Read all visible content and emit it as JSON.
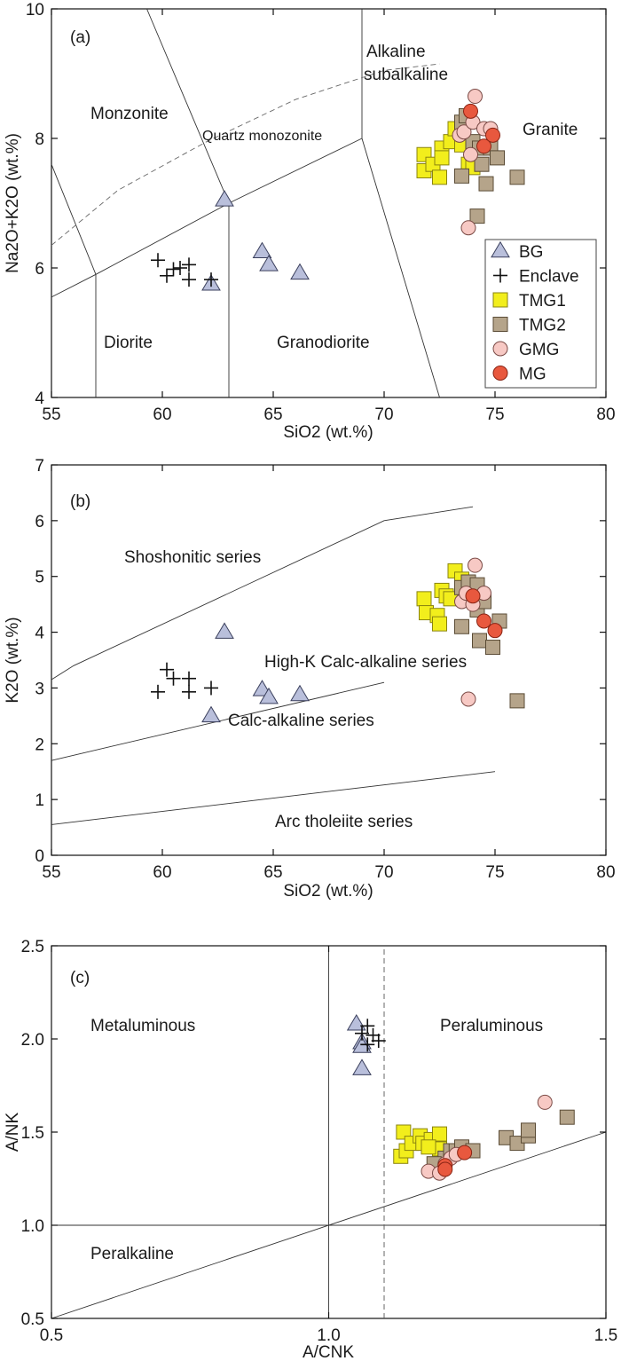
{
  "colors": {
    "BG": "#b9bfdb",
    "TMG1": "#f2ee1c",
    "TMG2": "#b5a48a",
    "GMG": "#f7c9c4",
    "MG": "#e8583e",
    "Enclave": "#111111"
  },
  "chart_data": [
    {
      "panel": "(a)",
      "type": "scatter",
      "xlabel": "SiO2 (wt.%)",
      "ylabel": "Na2O+K2O (wt.%)",
      "xlim": [
        55,
        80
      ],
      "ylim": [
        4,
        10
      ],
      "xticks": [
        55,
        60,
        65,
        70,
        75,
        80
      ],
      "yticks": [
        4,
        6,
        8,
        10
      ],
      "field_labels": [
        "Monzonite",
        "Quartz monozonite",
        "Alkaline",
        "subalkaline",
        "Granite",
        "Diorite",
        "Granodiorite"
      ],
      "legend": [
        {
          "name": "BG",
          "marker": "triangle"
        },
        {
          "name": "Enclave",
          "marker": "plus"
        },
        {
          "name": "TMG1",
          "marker": "square"
        },
        {
          "name": "TMG2",
          "marker": "square"
        },
        {
          "name": "GMG",
          "marker": "circle"
        },
        {
          "name": "MG",
          "marker": "circle"
        }
      ],
      "series": [
        {
          "name": "BG",
          "points": [
            [
              62.8,
              7.05
            ],
            [
              64.5,
              6.25
            ],
            [
              64.8,
              6.05
            ],
            [
              66.2,
              5.92
            ],
            [
              62.2,
              5.75
            ]
          ]
        },
        {
          "name": "Enclave",
          "points": [
            [
              59.8,
              6.12
            ],
            [
              60.2,
              5.88
            ],
            [
              60.5,
              5.98
            ],
            [
              60.8,
              6.0
            ],
            [
              61.2,
              6.05
            ],
            [
              61.2,
              5.82
            ],
            [
              62.2,
              5.82
            ]
          ]
        },
        {
          "name": "TMG1",
          "points": [
            [
              71.8,
              7.75
            ],
            [
              71.8,
              7.5
            ],
            [
              72.2,
              7.6
            ],
            [
              72.5,
              7.4
            ],
            [
              72.6,
              7.85
            ],
            [
              72.6,
              7.7
            ],
            [
              73.0,
              7.95
            ],
            [
              73.2,
              8.15
            ],
            [
              73.5,
              7.9
            ],
            [
              73.8,
              7.6
            ],
            [
              74.0,
              7.55
            ]
          ]
        },
        {
          "name": "TMG2",
          "points": [
            [
              73.5,
              8.25
            ],
            [
              73.7,
              8.35
            ],
            [
              74.0,
              7.95
            ],
            [
              74.3,
              7.85
            ],
            [
              74.4,
              7.6
            ],
            [
              74.6,
              7.3
            ],
            [
              74.8,
              7.85
            ],
            [
              75.1,
              7.7
            ],
            [
              76.0,
              7.4
            ],
            [
              73.5,
              7.42
            ],
            [
              74.2,
              6.8
            ]
          ]
        },
        {
          "name": "GMG",
          "points": [
            [
              73.4,
              8.05
            ],
            [
              73.6,
              8.1
            ],
            [
              73.9,
              7.75
            ],
            [
              74.0,
              8.25
            ],
            [
              74.1,
              8.65
            ],
            [
              74.5,
              8.15
            ],
            [
              74.8,
              8.15
            ],
            [
              73.8,
              6.62
            ]
          ]
        },
        {
          "name": "MG",
          "points": [
            [
              73.9,
              8.42
            ],
            [
              74.5,
              7.88
            ],
            [
              74.9,
              8.05
            ]
          ]
        }
      ]
    },
    {
      "panel": "(b)",
      "type": "scatter",
      "xlabel": "SiO2 (wt.%)",
      "ylabel": "K2O (wt.%)",
      "xlim": [
        55,
        80
      ],
      "ylim": [
        0,
        7
      ],
      "xticks": [
        55,
        60,
        65,
        70,
        75,
        80
      ],
      "yticks": [
        0,
        1,
        2,
        3,
        4,
        5,
        6,
        7
      ],
      "field_labels": [
        "Shoshonitic series",
        "High-K Calc-alkaline series",
        "Calc-alkaline series",
        "Arc tholeiite series"
      ],
      "series": [
        {
          "name": "BG",
          "points": [
            [
              62.8,
              4.0
            ],
            [
              64.5,
              2.97
            ],
            [
              64.8,
              2.83
            ],
            [
              66.2,
              2.88
            ],
            [
              62.2,
              2.5
            ]
          ]
        },
        {
          "name": "Enclave",
          "points": [
            [
              59.8,
              2.93
            ],
            [
              60.2,
              3.33
            ],
            [
              60.5,
              3.17
            ],
            [
              61.2,
              3.17
            ],
            [
              61.2,
              2.93
            ],
            [
              62.2,
              3.0
            ]
          ]
        },
        {
          "name": "TMG1",
          "points": [
            [
              71.8,
              4.6
            ],
            [
              71.9,
              4.35
            ],
            [
              72.4,
              4.3
            ],
            [
              72.5,
              4.15
            ],
            [
              72.6,
              4.75
            ],
            [
              72.8,
              4.65
            ],
            [
              73.2,
              5.1
            ],
            [
              73.5,
              4.95
            ],
            [
              73.0,
              4.6
            ],
            [
              73.8,
              4.7
            ]
          ]
        },
        {
          "name": "TMG2",
          "points": [
            [
              73.5,
              4.8
            ],
            [
              73.8,
              4.9
            ],
            [
              74.2,
              4.85
            ],
            [
              74.2,
              4.4
            ],
            [
              74.3,
              3.85
            ],
            [
              74.9,
              3.73
            ],
            [
              75.2,
              4.2
            ],
            [
              74.5,
              4.55
            ],
            [
              73.5,
              4.1
            ],
            [
              76.0,
              2.77
            ]
          ]
        },
        {
          "name": "GMG",
          "points": [
            [
              73.5,
              4.55
            ],
            [
              73.7,
              4.7
            ],
            [
              74.0,
              4.5
            ],
            [
              74.1,
              5.2
            ],
            [
              74.5,
              4.7
            ],
            [
              73.8,
              2.8
            ]
          ]
        },
        {
          "name": "MG",
          "points": [
            [
              74.0,
              4.65
            ],
            [
              74.5,
              4.2
            ],
            [
              75.0,
              4.03
            ]
          ]
        }
      ]
    },
    {
      "panel": "(c)",
      "type": "scatter",
      "xlabel": "A/CNK",
      "ylabel": "A/NK",
      "xlim": [
        0.5,
        1.5
      ],
      "ylim": [
        0.5,
        2.5
      ],
      "xticks": [
        "0.5",
        "1.0",
        "1.5"
      ],
      "yticks": [
        "0.5",
        "1.0",
        "1.5",
        "2.0",
        "2.5"
      ],
      "field_labels": [
        "Metaluminous",
        "Peraluminous",
        "Peralkaline"
      ],
      "series": [
        {
          "name": "BG",
          "points": [
            [
              1.05,
              2.08
            ],
            [
              1.06,
              1.98
            ],
            [
              1.06,
              1.96
            ],
            [
              1.06,
              1.84
            ]
          ]
        },
        {
          "name": "Enclave",
          "points": [
            [
              1.07,
              2.07
            ],
            [
              1.08,
              2.02
            ],
            [
              1.09,
              1.99
            ],
            [
              1.07,
              1.97
            ],
            [
              1.06,
              2.03
            ]
          ]
        },
        {
          "name": "TMG1",
          "points": [
            [
              1.13,
              1.37
            ],
            [
              1.135,
              1.5
            ],
            [
              1.14,
              1.4
            ],
            [
              1.15,
              1.44
            ],
            [
              1.165,
              1.48
            ],
            [
              1.17,
              1.44
            ],
            [
              1.185,
              1.46
            ],
            [
              1.2,
              1.49
            ],
            [
              1.2,
              1.41
            ],
            [
              1.18,
              1.42
            ]
          ]
        },
        {
          "name": "TMG2",
          "points": [
            [
              1.21,
              1.36
            ],
            [
              1.22,
              1.4
            ],
            [
              1.23,
              1.4
            ],
            [
              1.24,
              1.42
            ],
            [
              1.26,
              1.4
            ],
            [
              1.32,
              1.47
            ],
            [
              1.34,
              1.44
            ],
            [
              1.36,
              1.48
            ],
            [
              1.36,
              1.51
            ],
            [
              1.43,
              1.58
            ],
            [
              1.19,
              1.33
            ]
          ]
        },
        {
          "name": "GMG",
          "points": [
            [
              1.18,
              1.29
            ],
            [
              1.2,
              1.28
            ],
            [
              1.21,
              1.33
            ],
            [
              1.22,
              1.36
            ],
            [
              1.23,
              1.38
            ],
            [
              1.39,
              1.66
            ]
          ]
        },
        {
          "name": "MG",
          "points": [
            [
              1.21,
              1.32
            ],
            [
              1.21,
              1.3
            ],
            [
              1.245,
              1.39
            ]
          ]
        }
      ]
    }
  ]
}
